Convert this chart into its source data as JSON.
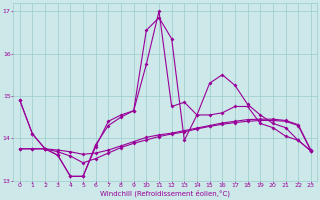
{
  "xlabel": "Windchill (Refroidissement éolien,°C)",
  "bg_color": "#cce8e8",
  "grid_color": "#99cccc",
  "line_color": "#990099",
  "xlim": [
    -0.5,
    23.5
  ],
  "ylim": [
    13.0,
    17.2
  ],
  "yticks": [
    13,
    14,
    15,
    16,
    17
  ],
  "xticks": [
    0,
    1,
    2,
    3,
    4,
    5,
    6,
    7,
    8,
    9,
    10,
    11,
    12,
    13,
    14,
    15,
    16,
    17,
    18,
    19,
    20,
    21,
    22,
    23
  ],
  "series1_x": [
    0,
    1,
    2,
    3,
    4,
    5,
    6,
    7,
    8,
    9,
    10,
    11,
    12,
    13,
    14,
    15,
    16,
    17,
    18,
    19,
    20,
    21,
    22,
    23
  ],
  "series1_y": [
    14.9,
    14.1,
    13.75,
    13.6,
    13.1,
    13.1,
    13.8,
    14.4,
    14.55,
    14.65,
    16.55,
    16.85,
    16.35,
    13.95,
    14.55,
    15.3,
    15.5,
    15.25,
    14.8,
    14.55,
    14.35,
    14.25,
    13.95,
    13.7
  ],
  "series2_x": [
    0,
    1,
    2,
    3,
    4,
    5,
    6,
    7,
    8,
    9,
    10,
    11,
    12,
    13,
    14,
    15,
    16,
    17,
    18,
    19,
    20,
    21,
    22,
    23
  ],
  "series2_y": [
    14.9,
    14.1,
    13.75,
    13.6,
    13.1,
    13.1,
    13.85,
    14.3,
    14.5,
    14.65,
    15.75,
    17.0,
    14.75,
    14.85,
    14.55,
    14.55,
    14.6,
    14.75,
    14.75,
    14.35,
    14.25,
    14.05,
    13.95,
    13.7
  ],
  "series3_x": [
    0,
    1,
    2,
    3,
    4,
    5,
    6,
    7,
    8,
    9,
    10,
    11,
    12,
    13,
    14,
    15,
    16,
    17,
    18,
    19,
    20,
    21,
    22,
    23
  ],
  "series3_y": [
    13.75,
    13.75,
    13.75,
    13.72,
    13.68,
    13.62,
    13.65,
    13.72,
    13.82,
    13.92,
    14.02,
    14.08,
    14.12,
    14.18,
    14.24,
    14.3,
    14.36,
    14.4,
    14.44,
    14.45,
    14.45,
    14.42,
    14.32,
    13.72
  ],
  "series4_x": [
    0,
    1,
    2,
    3,
    4,
    5,
    6,
    7,
    8,
    9,
    10,
    11,
    12,
    13,
    14,
    15,
    16,
    17,
    18,
    19,
    20,
    21,
    22,
    23
  ],
  "series4_y": [
    13.75,
    13.75,
    13.75,
    13.68,
    13.58,
    13.42,
    13.52,
    13.65,
    13.78,
    13.88,
    13.96,
    14.04,
    14.1,
    14.15,
    14.22,
    14.28,
    14.33,
    14.37,
    14.4,
    14.42,
    14.42,
    14.4,
    14.3,
    13.7
  ]
}
